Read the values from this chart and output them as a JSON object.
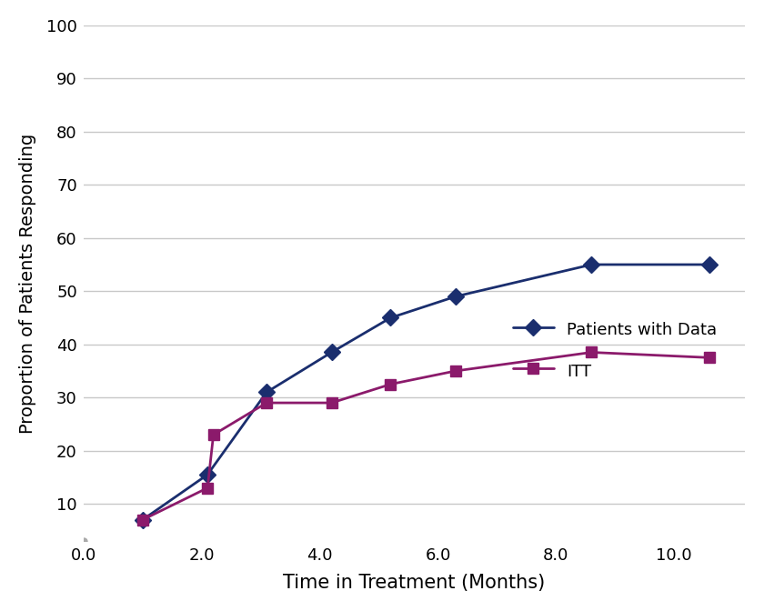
{
  "patients_x": [
    1.0,
    2.1,
    3.1,
    4.2,
    5.2,
    6.3,
    8.6,
    10.6
  ],
  "patients_y": [
    7.0,
    15.5,
    31.0,
    38.5,
    45.0,
    49.0,
    55.0,
    55.0
  ],
  "itt_x": [
    1.0,
    2.1,
    2.2,
    3.1,
    4.2,
    5.2,
    6.3,
    8.6,
    10.6
  ],
  "itt_y": [
    7.0,
    13.0,
    23.0,
    29.0,
    29.0,
    32.5,
    35.0,
    38.5,
    37.5
  ],
  "patients_label": "Patients with Data",
  "itt_label": "ITT",
  "patients_color": "#1A2E6E",
  "itt_color": "#8B1A6B",
  "xlabel": "Time in Treatment (Months)",
  "ylabel": "Proportion of Patients Responding",
  "xlim": [
    0.0,
    11.2
  ],
  "ylim": [
    3,
    100
  ],
  "xticks": [
    0.0,
    2.0,
    4.0,
    6.0,
    8.0,
    10.0
  ],
  "yticks": [
    10,
    20,
    30,
    40,
    50,
    60,
    70,
    80,
    90,
    100
  ],
  "background_color": "#FFFFFF",
  "grid_color": "#C8C8C8",
  "xlabel_fontsize": 15,
  "ylabel_fontsize": 14,
  "tick_fontsize": 13,
  "legend_fontsize": 13,
  "marker_size_patients": 9,
  "marker_size_itt": 8,
  "line_width": 2.0,
  "dot_x": 0.0,
  "dot_y": 3.0,
  "dot_color": "#AAAAAA"
}
